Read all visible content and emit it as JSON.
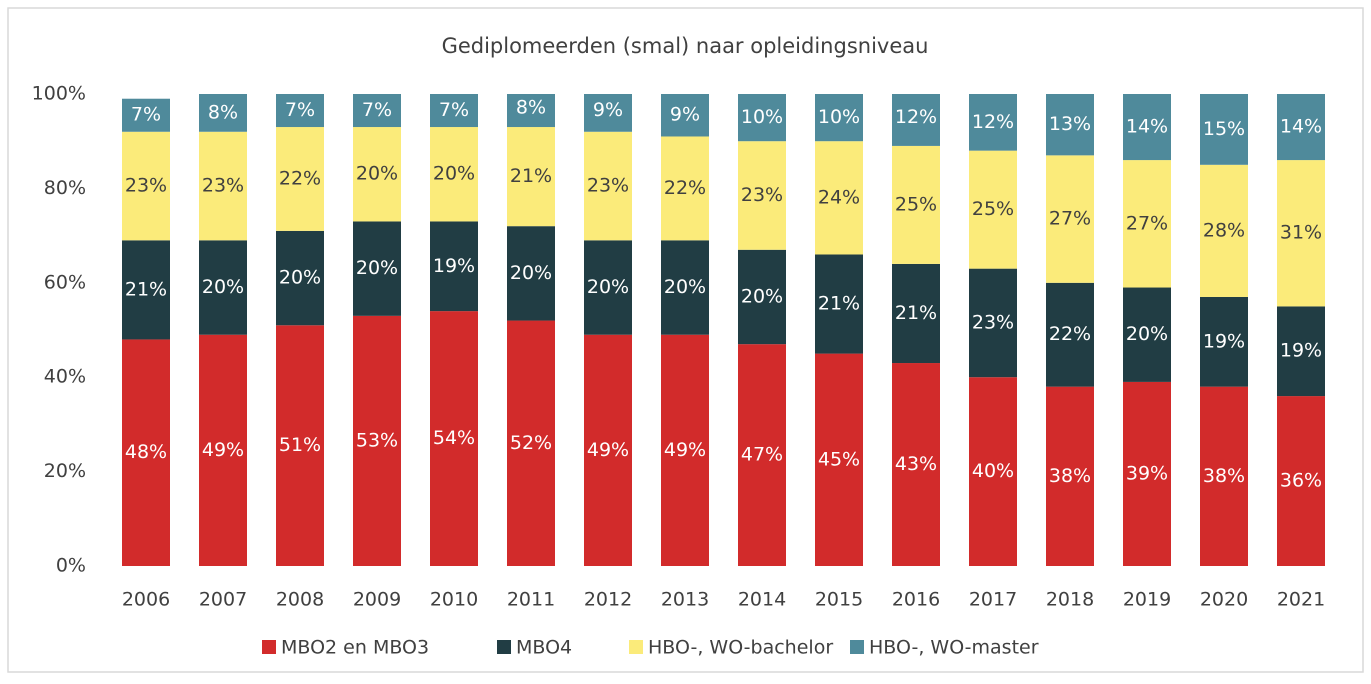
{
  "chart_data": {
    "type": "bar",
    "stacked": true,
    "title": "Gediplomeerden (smal) naar opleidingsniveau",
    "categories": [
      "2006",
      "2007",
      "2008",
      "2009",
      "2010",
      "2011",
      "2012",
      "2013",
      "2014",
      "2015",
      "2016",
      "2017",
      "2018",
      "2019",
      "2020",
      "2021"
    ],
    "series": [
      {
        "name": "MBO2 en MBO3",
        "color": "#d22b2b",
        "values": [
          48,
          49,
          51,
          53,
          54,
          52,
          49,
          49,
          47,
          45,
          43,
          40,
          38,
          39,
          38,
          36
        ],
        "value_labels": [
          "48%",
          "49%",
          "51%",
          "53%",
          "54%",
          "52%",
          "49%",
          "49%",
          "47%",
          "45%",
          "43%",
          "40%",
          "38%",
          "39%",
          "38%",
          "36%"
        ]
      },
      {
        "name": "MBO4",
        "color": "#213d44",
        "values": [
          21,
          20,
          20,
          20,
          19,
          20,
          20,
          20,
          20,
          21,
          21,
          23,
          22,
          20,
          19,
          19
        ],
        "value_labels": [
          "21%",
          "20%",
          "20%",
          "20%",
          "19%",
          "20%",
          "20%",
          "20%",
          "20%",
          "21%",
          "21%",
          "23%",
          "22%",
          "20%",
          "19%",
          "19%"
        ]
      },
      {
        "name": "HBO-, WO-bachelor",
        "color": "#fbeb7a",
        "values": [
          23,
          23,
          22,
          20,
          20,
          21,
          23,
          22,
          23,
          24,
          25,
          25,
          27,
          27,
          28,
          31
        ],
        "value_labels": [
          "23%",
          "23%",
          "22%",
          "20%",
          "20%",
          "21%",
          "23%",
          "22%",
          "23%",
          "24%",
          "25%",
          "25%",
          "27%",
          "27%",
          "28%",
          "31%"
        ]
      },
      {
        "name": "HBO-, WO-master",
        "color": "#4f8a9b",
        "values": [
          7,
          8,
          7,
          7,
          7,
          8,
          9,
          9,
          10,
          10,
          12,
          12,
          13,
          14,
          15,
          14
        ],
        "value_labels": [
          "7%",
          "8%",
          "7%",
          "7%",
          "7%",
          "8%",
          "9%",
          "9%",
          "10%",
          "10%",
          "12%",
          "12%",
          "13%",
          "14%",
          "15%",
          "14%"
        ]
      }
    ],
    "ylim": [
      0,
      100
    ],
    "yticks": [
      {
        "value": 0,
        "label": "0%"
      },
      {
        "value": 20,
        "label": "20%"
      },
      {
        "value": 40,
        "label": "40%"
      },
      {
        "value": 60,
        "label": "60%"
      },
      {
        "value": 80,
        "label": "80%"
      },
      {
        "value": 100,
        "label": "100%"
      }
    ],
    "legend": "bottom"
  }
}
